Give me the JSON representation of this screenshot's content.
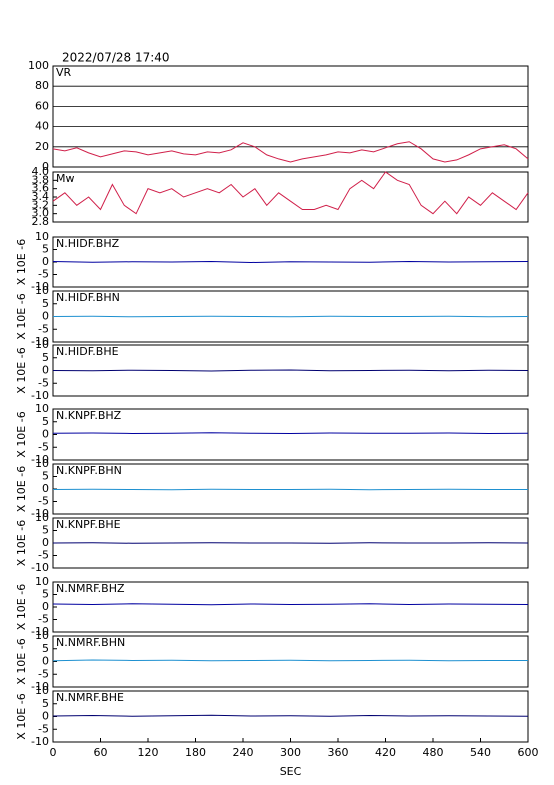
{
  "chart_data": [
    {
      "type": "line",
      "title": "2022/07/28 17:40",
      "label": "VR",
      "xlim": [
        0,
        600
      ],
      "ylim": [
        0,
        100
      ],
      "yticks": [
        0,
        20,
        40,
        60,
        80,
        100
      ],
      "grid": true,
      "x": [
        0,
        15,
        30,
        45,
        60,
        75,
        90,
        105,
        120,
        135,
        150,
        165,
        180,
        195,
        210,
        225,
        240,
        255,
        270,
        285,
        300,
        315,
        330,
        345,
        360,
        375,
        390,
        405,
        420,
        435,
        450,
        465,
        480,
        495,
        510,
        525,
        540,
        555,
        570,
        585,
        600
      ],
      "series": [
        {
          "color": "#d0204a",
          "values": [
            18,
            16,
            19,
            14,
            10,
            13,
            16,
            15,
            12,
            14,
            16,
            13,
            12,
            15,
            14,
            17,
            24,
            20,
            12,
            8,
            5,
            8,
            10,
            12,
            15,
            14,
            17,
            15,
            19,
            23,
            25,
            18,
            8,
            5,
            7,
            12,
            18,
            20,
            22,
            18,
            8
          ]
        }
      ]
    },
    {
      "type": "line",
      "label": "Mw",
      "xlim": [
        0,
        600
      ],
      "ylim": [
        2.8,
        4.0
      ],
      "yticks": [
        2.8,
        {
          "value": 3,
          "label": "3.0"
        },
        3.2,
        3.4,
        3.6,
        3.8,
        {
          "value": 4,
          "label": "4.0"
        }
      ],
      "x": [
        0,
        15,
        30,
        45,
        60,
        75,
        90,
        105,
        120,
        135,
        150,
        165,
        180,
        195,
        210,
        225,
        240,
        255,
        270,
        285,
        300,
        315,
        330,
        345,
        360,
        375,
        390,
        405,
        420,
        435,
        450,
        465,
        480,
        495,
        510,
        525,
        540,
        555,
        570,
        585,
        600
      ],
      "series": [
        {
          "color": "#d0204a",
          "values": [
            3.3,
            3.5,
            3.2,
            3.4,
            3.1,
            3.7,
            3.2,
            3.0,
            3.6,
            3.5,
            3.6,
            3.4,
            3.5,
            3.6,
            3.5,
            3.7,
            3.4,
            3.6,
            3.2,
            3.5,
            3.3,
            3.1,
            3.1,
            3.2,
            3.1,
            3.6,
            3.8,
            3.6,
            4.0,
            3.8,
            3.7,
            3.2,
            3.0,
            3.3,
            3.0,
            3.4,
            3.2,
            3.5,
            3.3,
            3.1,
            3.5
          ]
        }
      ]
    },
    {
      "type": "line",
      "label": "N.HIDF.BHZ",
      "ylabel": "X 10E -6",
      "xlim": [
        0,
        600
      ],
      "ylim": [
        -10,
        10
      ],
      "yticks": [
        -10,
        -5,
        0,
        5,
        10
      ],
      "x": [
        0,
        50,
        100,
        150,
        200,
        250,
        300,
        350,
        400,
        450,
        500,
        550,
        600
      ],
      "series": [
        {
          "color": "#0000a0",
          "values": [
            0.2,
            -0.1,
            0.1,
            0,
            0.2,
            -0.2,
            0.1,
            0,
            -0.1,
            0.2,
            0,
            0.1,
            0.2
          ]
        }
      ]
    },
    {
      "type": "line",
      "label": "N.HIDF.BHN",
      "ylabel": "X 10E -6",
      "xlim": [
        0,
        600
      ],
      "ylim": [
        -10,
        10
      ],
      "yticks": [
        -10,
        -5,
        0,
        5,
        10
      ],
      "x": [
        0,
        50,
        100,
        150,
        200,
        250,
        300,
        350,
        400,
        450,
        500,
        550,
        600
      ],
      "series": [
        {
          "color": "#1e90d0",
          "values": [
            0,
            0.1,
            -0.1,
            0,
            0.1,
            0,
            -0.1,
            0.1,
            0,
            0,
            0.1,
            -0.1,
            0
          ]
        }
      ]
    },
    {
      "type": "line",
      "label": "N.HIDF.BHE",
      "ylabel": "X 10E -6",
      "xlim": [
        0,
        600
      ],
      "ylim": [
        -10,
        10
      ],
      "yticks": [
        -10,
        -5,
        0,
        5,
        10
      ],
      "x": [
        0,
        50,
        100,
        150,
        200,
        250,
        300,
        350,
        400,
        450,
        500,
        550,
        600
      ],
      "series": [
        {
          "color": "#000070",
          "values": [
            0,
            -0.1,
            0.1,
            0,
            -0.2,
            0.1,
            0.2,
            -0.1,
            0,
            0.1,
            -0.1,
            0.1,
            0
          ]
        }
      ]
    },
    {
      "type": "line",
      "label": "N.KNPF.BHZ",
      "ylabel": "X 10E -6",
      "xlim": [
        0,
        600
      ],
      "ylim": [
        -10,
        10
      ],
      "yticks": [
        -10,
        -5,
        0,
        5,
        10
      ],
      "x": [
        0,
        50,
        100,
        150,
        200,
        250,
        300,
        350,
        400,
        450,
        500,
        550,
        600
      ],
      "series": [
        {
          "color": "#0000a0",
          "values": [
            0.5,
            0.6,
            0.4,
            0.5,
            0.7,
            0.5,
            0.4,
            0.6,
            0.5,
            0.5,
            0.6,
            0.4,
            0.5
          ]
        }
      ]
    },
    {
      "type": "line",
      "label": "N.KNPF.BHN",
      "ylabel": "X 10E -6",
      "xlim": [
        0,
        600
      ],
      "ylim": [
        -10,
        10
      ],
      "yticks": [
        -10,
        -5,
        0,
        5,
        10
      ],
      "x": [
        0,
        50,
        100,
        150,
        200,
        250,
        300,
        350,
        400,
        450,
        500,
        550,
        600
      ],
      "series": [
        {
          "color": "#1e90d0",
          "values": [
            -0.2,
            -0.1,
            -0.2,
            -0.3,
            -0.1,
            -0.2,
            -0.2,
            -0.1,
            -0.3,
            -0.2,
            -0.1,
            -0.2,
            -0.2
          ]
        }
      ]
    },
    {
      "type": "line",
      "label": "N.KNPF.BHE",
      "ylabel": "X 10E -6",
      "xlim": [
        0,
        600
      ],
      "ylim": [
        -10,
        10
      ],
      "yticks": [
        -10,
        -5,
        0,
        5,
        10
      ],
      "x": [
        0,
        50,
        100,
        150,
        200,
        250,
        300,
        350,
        400,
        450,
        500,
        550,
        600
      ],
      "series": [
        {
          "color": "#000070",
          "values": [
            0,
            0.1,
            -0.1,
            0,
            0.1,
            0,
            0,
            -0.1,
            0.1,
            0,
            0,
            0.1,
            0
          ]
        }
      ]
    },
    {
      "type": "line",
      "label": "N.NMRF.BHZ",
      "ylabel": "X 10E -6",
      "xlim": [
        0,
        600
      ],
      "ylim": [
        -10,
        10
      ],
      "yticks": [
        -10,
        -5,
        0,
        5,
        10
      ],
      "x": [
        0,
        50,
        100,
        150,
        200,
        250,
        300,
        350,
        400,
        450,
        500,
        550,
        600
      ],
      "series": [
        {
          "color": "#0000a0",
          "values": [
            1.2,
            1.0,
            1.3,
            1.1,
            0.9,
            1.2,
            1.0,
            1.1,
            1.3,
            1.0,
            1.2,
            1.1,
            1.0
          ]
        }
      ]
    },
    {
      "type": "line",
      "label": "N.NMRF.BHN",
      "ylabel": "X 10E -6",
      "xlim": [
        0,
        600
      ],
      "ylim": [
        -10,
        10
      ],
      "yticks": [
        -10,
        -5,
        0,
        5,
        10
      ],
      "x": [
        0,
        50,
        100,
        150,
        200,
        250,
        300,
        350,
        400,
        450,
        500,
        550,
        600
      ],
      "series": [
        {
          "color": "#1e90d0",
          "values": [
            0.3,
            0.6,
            0.4,
            0.5,
            0.3,
            0.4,
            0.5,
            0.3,
            0.4,
            0.5,
            0.3,
            0.4,
            0.4
          ]
        }
      ]
    },
    {
      "type": "line",
      "label": "N.NMRF.BHE",
      "ylabel": "X 10E -6",
      "xlim": [
        0,
        600
      ],
      "ylim": [
        -10,
        10
      ],
      "yticks": [
        -10,
        -5,
        0,
        5,
        10
      ],
      "xlabel": "SEC",
      "xticks": [
        0,
        60,
        120,
        180,
        240,
        300,
        360,
        420,
        480,
        540,
        600
      ],
      "x": [
        0,
        50,
        100,
        150,
        200,
        250,
        300,
        350,
        400,
        450,
        500,
        550,
        600
      ],
      "series": [
        {
          "color": "#000070",
          "values": [
            0.2,
            0.4,
            0.1,
            0.3,
            0.5,
            0.2,
            0.3,
            0.1,
            0.4,
            0.2,
            0.3,
            0.2,
            0.1
          ]
        }
      ]
    }
  ]
}
